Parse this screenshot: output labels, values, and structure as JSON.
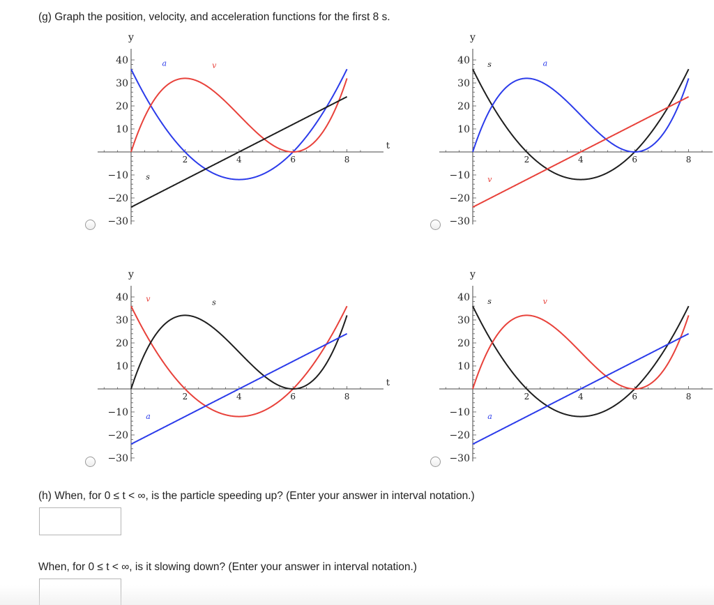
{
  "question_g": "(g) Graph the position, velocity, and acceleration functions for the first 8 s.",
  "question_h": "(h) When, for  0 ≤ t < ∞,  is the particle speeding up? (Enter your answer in interval notation.)",
  "question_i": "When, for  0 ≤ t < ∞,  is it slowing down? (Enter your answer in interval notation.)",
  "answer_h_value": "",
  "answer_i_value": "",
  "colors": {
    "red": "#e8413a",
    "blue": "#2b3bea",
    "black": "#1e1e1e"
  },
  "axis": {
    "y_label": "y",
    "t_label": "t",
    "y_ticks": [
      "40",
      "30",
      "20",
      "10",
      "−10",
      "−20",
      "−30"
    ],
    "x_ticks": [
      "2",
      "4",
      "6",
      "8"
    ]
  },
  "chart_data": [
    {
      "type": "line",
      "option": 1,
      "xlim": [
        0,
        8
      ],
      "ylim": [
        -30,
        40
      ],
      "series": [
        {
          "name": "a",
          "color": "blue",
          "fn": "3(t-4)^2-12"
        },
        {
          "name": "v",
          "color": "red",
          "fn": "t(t-6)^2"
        },
        {
          "name": "s",
          "color": "black",
          "fn": "6t-24"
        }
      ]
    },
    {
      "type": "line",
      "option": 2,
      "xlim": [
        0,
        8
      ],
      "ylim": [
        -30,
        40
      ],
      "series": [
        {
          "name": "s",
          "color": "black",
          "fn": "3(t-4)^2-12"
        },
        {
          "name": "a",
          "color": "blue",
          "fn": "t(t-6)^2"
        },
        {
          "name": "v",
          "color": "red",
          "fn": "6t-24"
        }
      ]
    },
    {
      "type": "line",
      "option": 3,
      "xlim": [
        0,
        8
      ],
      "ylim": [
        -30,
        40
      ],
      "series": [
        {
          "name": "v",
          "color": "red",
          "fn": "3(t-4)^2-12"
        },
        {
          "name": "s",
          "color": "black",
          "fn": "t(t-6)^2"
        },
        {
          "name": "a",
          "color": "blue",
          "fn": "6t-24"
        }
      ]
    },
    {
      "type": "line",
      "option": 4,
      "xlim": [
        0,
        8
      ],
      "ylim": [
        -30,
        40
      ],
      "series": [
        {
          "name": "s",
          "color": "black",
          "fn": "3(t-4)^2-12"
        },
        {
          "name": "v",
          "color": "red",
          "fn": "t(t-6)^2"
        },
        {
          "name": "a",
          "color": "blue",
          "fn": "6t-24"
        }
      ]
    }
  ]
}
